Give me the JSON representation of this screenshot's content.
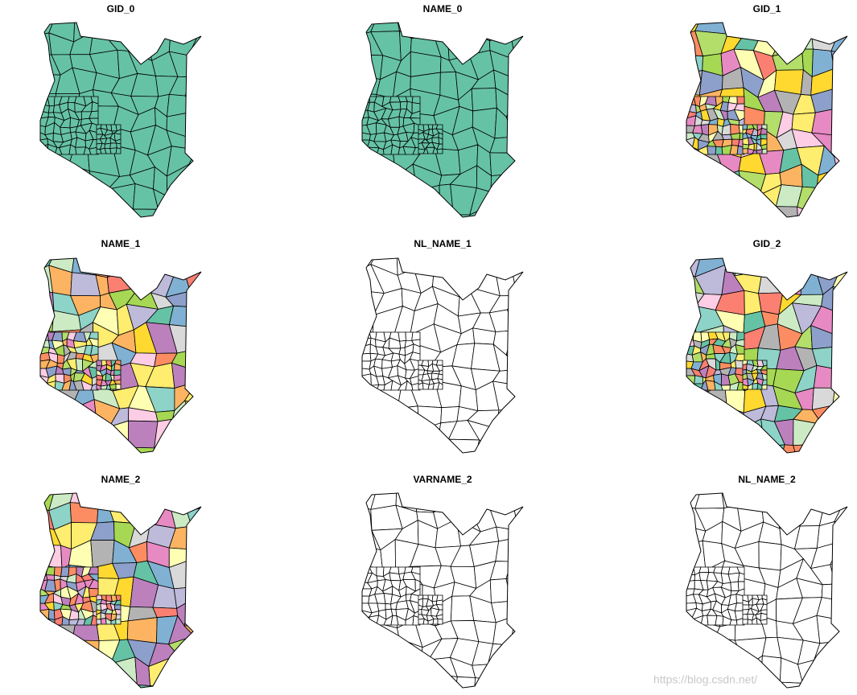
{
  "panels": [
    {
      "title": "GID_0"
    },
    {
      "title": "NAME_0"
    },
    {
      "title": "GID_1"
    },
    {
      "title": "NAME_1"
    },
    {
      "title": "NL_NAME_1"
    },
    {
      "title": "GID_2"
    },
    {
      "title": "NAME_2"
    },
    {
      "title": "VARNAME_2"
    },
    {
      "title": "NL_NAME_2"
    }
  ],
  "watermark": "https://blog.csdn.net/"
}
